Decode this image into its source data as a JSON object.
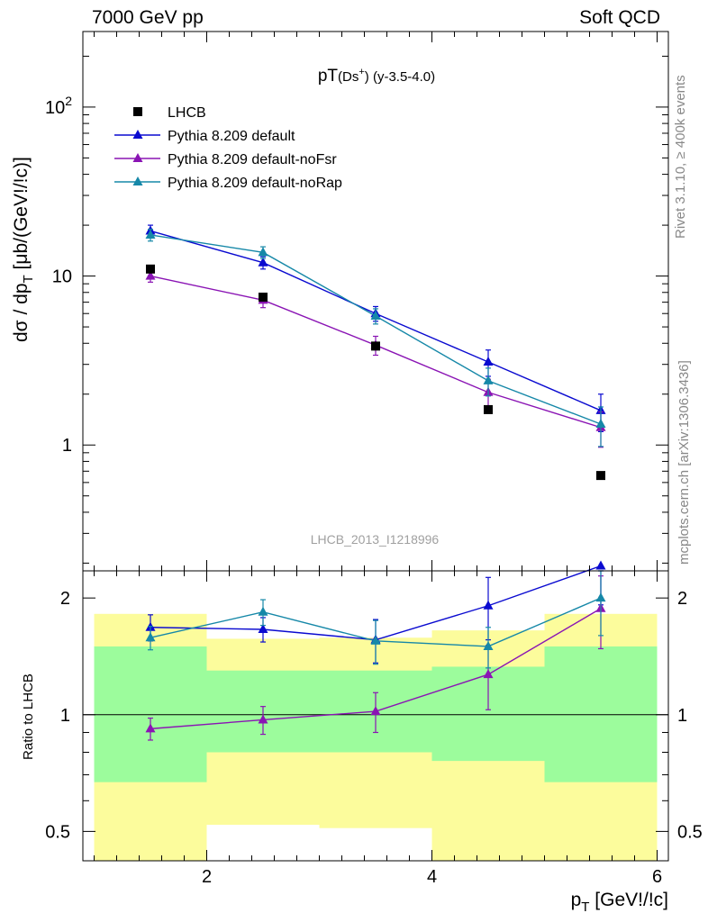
{
  "header": {
    "left": "7000 GeV pp",
    "right": "Soft QCD"
  },
  "side_text": {
    "top": "Rivet 3.1.10, ≥ 400k events",
    "bottom": "mcplots.cern.ch [arXiv:1306.3436]"
  },
  "watermark": "LHCB_2013_I1218996",
  "colors": {
    "data": "#000000",
    "default": "#0a0ad0",
    "noFsr": "#8a14b4",
    "noRap": "#1688a8",
    "band_inner": "#9cfc9c",
    "band_outer": "#fcfc9c"
  },
  "chart_data": [
    {
      "type": "line",
      "title": "pT(Ds⁺) (y-3.5-4.0)",
      "xlabel": "p_T [GeV!/!c]",
      "ylabel": "dσ / dp_T [μb/(GeV!/!c)]",
      "yscale": "log",
      "xlim": [
        0.9,
        6.1
      ],
      "ylim": [
        0.18,
        280
      ],
      "yticks": [
        {
          "v": 1,
          "label": "1"
        },
        {
          "v": 10,
          "label": "10"
        },
        {
          "v": 100,
          "label": "10^2"
        }
      ],
      "legend_position": "top-left",
      "series": [
        {
          "name": "LHCB",
          "key": "data",
          "marker": "square",
          "x": [
            1.5,
            2.5,
            3.5,
            4.5,
            5.5
          ],
          "y": [
            11.0,
            7.5,
            3.85,
            1.62,
            0.66
          ]
        },
        {
          "name": "Pythia 8.209 default",
          "key": "default",
          "marker": "triangle",
          "x": [
            1.5,
            2.5,
            3.5,
            4.5,
            5.5
          ],
          "y": [
            18.5,
            12.0,
            6.0,
            3.1,
            1.6
          ],
          "err": [
            1.5,
            1.0,
            0.6,
            0.55,
            0.4
          ]
        },
        {
          "name": "Pythia 8.209 default-noFsr",
          "key": "noFsr",
          "marker": "triangle",
          "x": [
            1.5,
            2.5,
            3.5,
            4.5,
            5.5
          ],
          "y": [
            10.0,
            7.2,
            3.9,
            2.05,
            1.27
          ],
          "err": [
            0.8,
            0.7,
            0.5,
            0.4,
            0.3
          ]
        },
        {
          "name": "Pythia 8.209 default-noRap",
          "key": "noRap",
          "marker": "triangle",
          "x": [
            1.5,
            2.5,
            3.5,
            4.5,
            5.5
          ],
          "y": [
            17.5,
            13.8,
            5.8,
            2.4,
            1.33
          ],
          "err": [
            1.4,
            1.1,
            0.6,
            0.45,
            0.35
          ]
        }
      ]
    },
    {
      "type": "line",
      "ylabel": "Ratio to LHCB",
      "xlabel": "p_T [GeV!/!c]",
      "yscale": "log",
      "xlim": [
        0.9,
        6.1
      ],
      "ylim": [
        0.42,
        2.35
      ],
      "yticks": [
        {
          "v": 0.5,
          "label": "0.5"
        },
        {
          "v": 1,
          "label": "1"
        },
        {
          "v": 2,
          "label": "2"
        }
      ],
      "xticks": [
        {
          "v": 2,
          "label": "2"
        },
        {
          "v": 4,
          "label": "4"
        },
        {
          "v": 6,
          "label": "6"
        }
      ],
      "bands": {
        "bins": [
          [
            1,
            2
          ],
          [
            2,
            3
          ],
          [
            3,
            4
          ],
          [
            4,
            5
          ],
          [
            5,
            6
          ]
        ],
        "inner": [
          [
            0.67,
            1.5
          ],
          [
            0.8,
            1.3
          ],
          [
            0.8,
            1.3
          ],
          [
            0.76,
            1.33
          ],
          [
            0.67,
            1.5
          ]
        ],
        "outer": [
          [
            0.38,
            1.82
          ],
          [
            0.52,
            1.57
          ],
          [
            0.51,
            1.58
          ],
          [
            0.37,
            1.65
          ],
          [
            0.38,
            1.82
          ]
        ]
      },
      "series": [
        {
          "key": "default",
          "x": [
            1.5,
            2.5,
            3.5,
            4.5,
            5.5
          ],
          "y": [
            1.68,
            1.66,
            1.56,
            1.91,
            2.42
          ],
          "err": [
            0.13,
            0.12,
            0.2,
            0.35,
            0.5
          ]
        },
        {
          "key": "noFsr",
          "x": [
            1.5,
            2.5,
            3.5,
            4.5,
            5.5
          ],
          "y": [
            0.92,
            0.97,
            1.02,
            1.27,
            1.88
          ],
          "err": [
            0.06,
            0.08,
            0.12,
            0.24,
            0.4
          ]
        },
        {
          "key": "noRap",
          "x": [
            1.5,
            2.5,
            3.5,
            4.5,
            5.5
          ],
          "y": [
            1.58,
            1.84,
            1.55,
            1.5,
            2.0
          ],
          "err": [
            0.11,
            0.14,
            0.2,
            0.18,
            0.4
          ]
        }
      ]
    }
  ]
}
